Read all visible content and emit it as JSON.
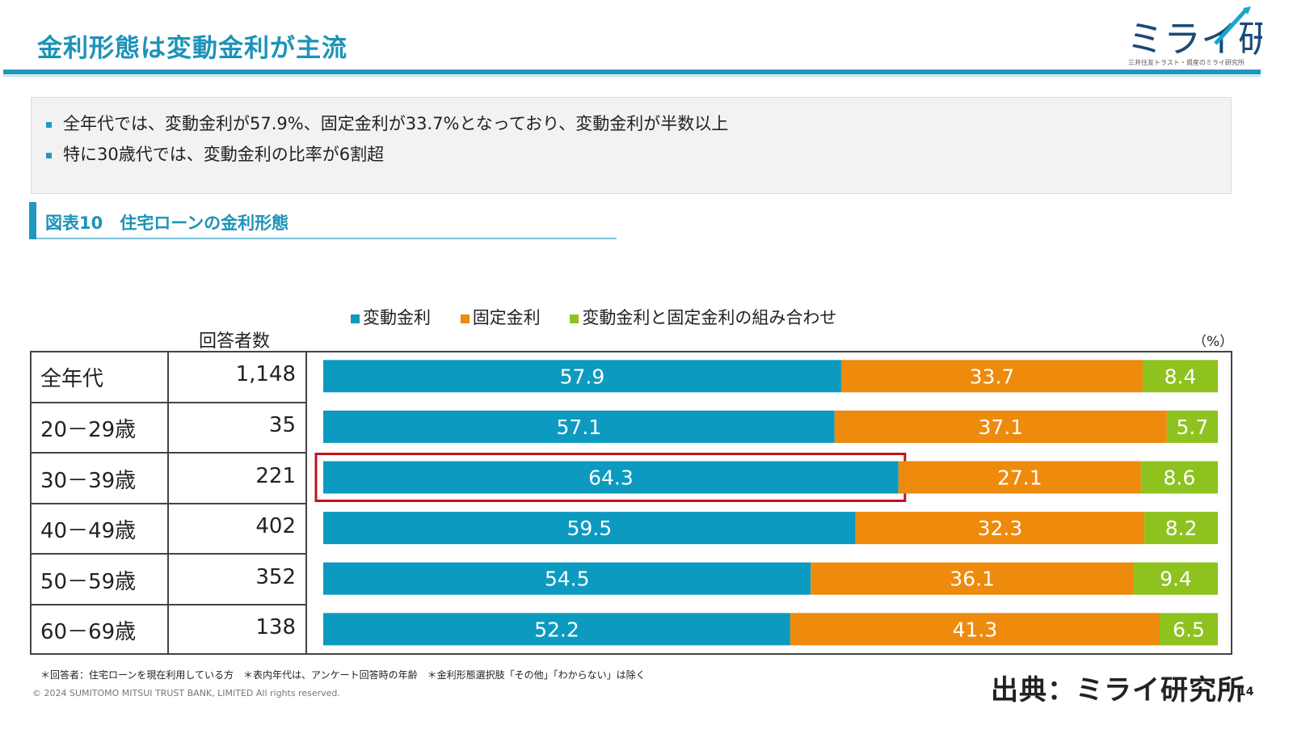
{
  "slide": {
    "title": "金利形態は変動金利が主流",
    "logo_text": "ミライ研",
    "logo_subtext": "三井住友トラスト・資産のミライ研究所",
    "summary": [
      "全年代では、変動金利が57.9%、固定金利が33.7%となっており、変動金利が半数以上",
      "特に30歳代では、変動金利の比率が6割超"
    ],
    "figure_title": "図表10　住宅ローンの金利形態",
    "respondents_header": "回答者数",
    "unit": "（%）",
    "footnote": "＊回答者：住宅ローンを現在利用している方　＊表内年代は、アンケート回答時の年齢　＊金利形態選択肢「その他」「わからない」は除く",
    "copyright": "© 2024 SUMITOMO MITSUI TRUST BANK, LIMITED All rights reserved.",
    "source": "出典：ミライ研究所",
    "page_number": "14"
  },
  "colors": {
    "variable": "#0d9ac0",
    "fixed": "#ee8a0c",
    "mixed": "#8dc21f",
    "accent": "#1e98bc",
    "highlight_box": "#c0121e"
  },
  "chart_data": {
    "type": "bar",
    "orientation": "horizontal",
    "stacked": "100%",
    "categories": [
      "全年代",
      "20－29歳",
      "30－39歳",
      "40－49歳",
      "50－59歳",
      "60－69歳"
    ],
    "respondents": [
      "1,148",
      "35",
      "221",
      "402",
      "352",
      "138"
    ],
    "series": [
      {
        "name": "変動金利",
        "values": [
          57.9,
          57.1,
          64.3,
          59.5,
          54.5,
          52.2
        ]
      },
      {
        "name": "固定金利",
        "values": [
          33.7,
          37.1,
          27.1,
          32.3,
          36.1,
          41.3
        ]
      },
      {
        "name": "変動金利と固定金利の組み合わせ",
        "values": [
          8.4,
          5.7,
          8.6,
          8.2,
          9.4,
          6.5
        ]
      }
    ],
    "legend_position": "top",
    "grid": false,
    "highlight": {
      "category": "30－39歳",
      "series": "変動金利"
    }
  }
}
